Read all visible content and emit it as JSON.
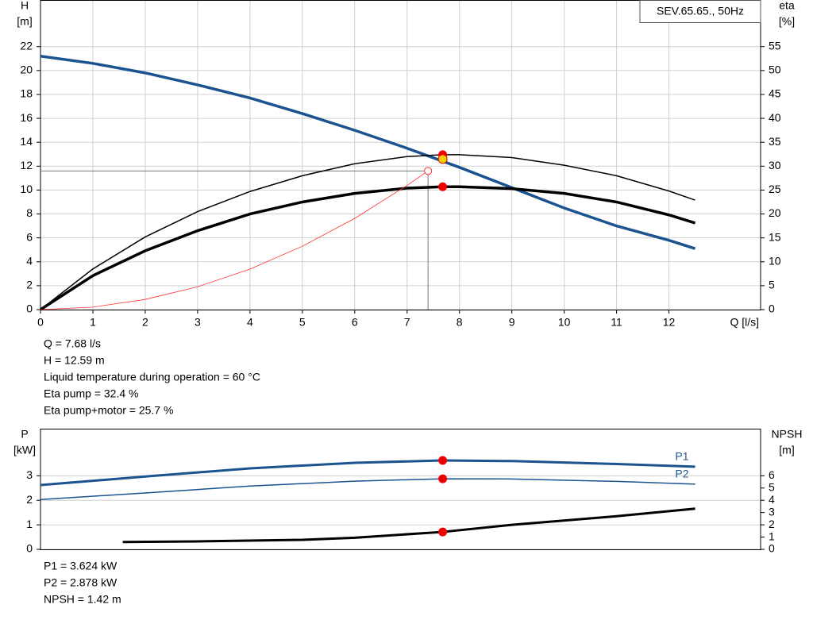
{
  "chart_data": [
    {
      "type": "line",
      "title": "SEV.65.65., 50Hz",
      "xlabel": "Q [l/s]",
      "ylabel": "H",
      "yunit": "[m]",
      "y2label": "eta",
      "y2unit": "[%]",
      "xlim": [
        0,
        13.75
      ],
      "xticks": [
        0,
        1,
        2,
        3,
        4,
        5,
        6,
        7,
        8,
        9,
        10,
        11,
        12
      ],
      "ylim": [
        0,
        25.9
      ],
      "yticks": [
        0,
        2,
        4,
        6,
        8,
        10,
        12,
        14,
        16,
        18,
        20,
        22
      ],
      "y2lim": [
        0,
        64.75
      ],
      "y2ticks": [
        0,
        5,
        10,
        15,
        20,
        25,
        30,
        35,
        40,
        45,
        50,
        55
      ],
      "grid": true,
      "series": [
        {
          "color": "#1b5390",
          "linewidth": 3.5,
          "x": [
            0,
            1,
            2,
            3,
            4,
            5,
            6,
            7,
            8,
            9,
            10,
            11,
            12,
            12.5
          ],
          "values": [
            21.2,
            20.6,
            19.8,
            18.8,
            17.7,
            16.4,
            15.0,
            13.5,
            11.9,
            10.2,
            8.5,
            7.0,
            5.8,
            5.1
          ]
        },
        {
          "color": "#000000",
          "linewidth": 1.5,
          "axis": "y2",
          "x": [
            0,
            1,
            2,
            3,
            4,
            5,
            6,
            7,
            7.68,
            8,
            9,
            10,
            11,
            12,
            12.5
          ],
          "values": [
            0,
            8.5,
            15.2,
            20.5,
            24.7,
            28.0,
            30.5,
            32.0,
            32.4,
            32.4,
            31.8,
            30.2,
            28.0,
            24.8,
            22.9
          ]
        },
        {
          "color": "#000000",
          "linewidth": 3.5,
          "axis": "y2",
          "x": [
            0,
            1,
            2,
            3,
            4,
            5,
            6,
            7,
            7.68,
            8,
            9,
            10,
            11,
            12,
            12.5
          ],
          "values": [
            0,
            7.1,
            12.3,
            16.5,
            20.0,
            22.5,
            24.3,
            25.4,
            25.7,
            25.7,
            25.3,
            24.3,
            22.5,
            19.8,
            18.1
          ]
        },
        {
          "color": "#ff3030",
          "linewidth": 0.8,
          "x": [
            0,
            1,
            2,
            3,
            4,
            5,
            6,
            7,
            7.4
          ],
          "values": [
            0,
            0.21,
            0.85,
            1.91,
            3.39,
            5.3,
            7.63,
            10.39,
            11.6
          ]
        }
      ],
      "reference_point": {
        "x": 7.4,
        "y": 11.6,
        "color": "#ff3030"
      },
      "duty_points": [
        {
          "x": 7.68,
          "y": 32.4,
          "axis": "y2",
          "color": "#ee0000"
        },
        {
          "x": 7.68,
          "y": 25.7,
          "axis": "y2",
          "color": "#ee0000"
        },
        {
          "x": 7.68,
          "y": 12.59,
          "axis": "y",
          "color": "#f5d000"
        }
      ],
      "notes": [
        "Q = 7.68 l/s",
        "H = 12.59 m",
        "Liquid temperature during operation = 60 °C",
        "Eta pump = 32.4 %",
        "Eta pump+motor = 25.7 %"
      ]
    },
    {
      "type": "line",
      "ylabel": "P",
      "yunit": "[kW]",
      "y2label": "NPSH",
      "y2unit": "[m]",
      "xlim": [
        0,
        13.75
      ],
      "ylim": [
        0,
        4.92
      ],
      "yticks": [
        0,
        1,
        2,
        3
      ],
      "y2lim": [
        0,
        9.84
      ],
      "y2ticks": [
        0,
        1,
        2,
        3,
        4,
        5,
        6
      ],
      "grid": true,
      "series": [
        {
          "name": "P1",
          "color": "#1b5390",
          "linewidth": 3,
          "x": [
            0,
            2,
            4,
            6,
            7.68,
            9,
            11,
            12.5
          ],
          "values": [
            2.62,
            2.97,
            3.3,
            3.53,
            3.624,
            3.6,
            3.48,
            3.37
          ]
        },
        {
          "name": "P2",
          "color": "#1b5390",
          "linewidth": 1.5,
          "x": [
            0,
            2,
            4,
            6,
            7.68,
            9,
            11,
            12.5
          ],
          "values": [
            2.03,
            2.3,
            2.58,
            2.78,
            2.878,
            2.87,
            2.77,
            2.66
          ]
        },
        {
          "color": "#000000",
          "linewidth": 3,
          "axis": "y2",
          "x": [
            1.57,
            3,
            5,
            6,
            7.68,
            9,
            11,
            12.5
          ],
          "values": [
            0.6,
            0.65,
            0.78,
            0.95,
            1.42,
            2.0,
            2.7,
            3.32
          ]
        }
      ],
      "duty_points": [
        {
          "x": 7.68,
          "y": 3.624,
          "axis": "y",
          "color": "#ee0000"
        },
        {
          "x": 7.68,
          "y": 2.878,
          "axis": "y",
          "color": "#ee0000"
        },
        {
          "x": 7.68,
          "y": 1.42,
          "axis": "y2",
          "color": "#ee0000"
        }
      ],
      "notes": [
        "P1 = 3.624 kW",
        "P2 = 2.878 kW",
        "NPSH = 1.42 m"
      ]
    }
  ]
}
